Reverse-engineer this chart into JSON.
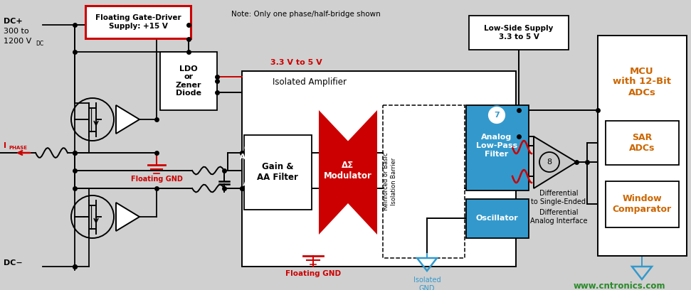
{
  "bg_color": "#d0d0d0",
  "title_note": "Note: Only one phase/half-bridge shown",
  "floating_gate_label": "Floating Gate-Driver\nSupply: +15 V",
  "ldo_label": "LDO\nor\nZener\nDiode",
  "voltage_33_5": "3.3 V to 5 V",
  "low_side_supply": "Low-Side Supply\n3.3 to 5 V",
  "isolated_amp_label": "Isolated Amplifier",
  "gain_aa_label": "Gain &\nAA Filter",
  "delta_sigma_label": "ΔΣ\nModulator",
  "barrier_label": "Reinforced or Basic\nIsolation Barrier",
  "analog_lpf_label": "Analog\nLow-Pass\nFilter",
  "oscillator_label": "Oscillator",
  "diff_single_label": "Differential\nto Single-Ended",
  "diff_analog_label": "Differential\nAnalog Interface",
  "mcu_label": "MCU\nwith 12-Bit\nADCs",
  "sar_label": "SAR\nADCs",
  "window_label": "Window\nComparator",
  "website": "www.cntronics.com",
  "red_fill": "#cc0000",
  "blue_fill": "#3399cc",
  "white_fill": "#ffffff",
  "light_gray": "#c8c8c8",
  "text_orange": "#cc6600",
  "text_green": "#2a8a2a",
  "text_blue": "#3399cc",
  "text_red": "#cc0000"
}
